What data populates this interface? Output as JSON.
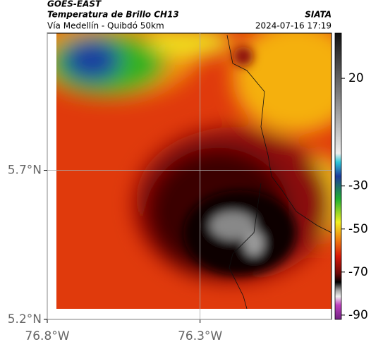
{
  "header": {
    "title": "GOES-EAST",
    "subtitle": "Temperatura de Brillo CH13",
    "route": "Vía Medellín - Quibdó 50km",
    "source": "SIATA",
    "timestamp": "2024-07-16 17:19"
  },
  "map": {
    "xlim": [
      -76.8,
      -75.87
    ],
    "ylim": [
      5.2,
      6.16
    ],
    "xticks": [
      {
        "value": -76.8,
        "label": "76.8°W"
      },
      {
        "value": -76.3,
        "label": "76.3°W"
      }
    ],
    "yticks": [
      {
        "value": 5.2,
        "label": "5.2°N"
      },
      {
        "value": 5.7,
        "label": "5.7°N"
      }
    ],
    "grid": true
  },
  "colorbar": {
    "lim": [
      -92,
      41
    ],
    "ticks": [
      20,
      -30,
      -50,
      -70,
      -90
    ]
  }
}
